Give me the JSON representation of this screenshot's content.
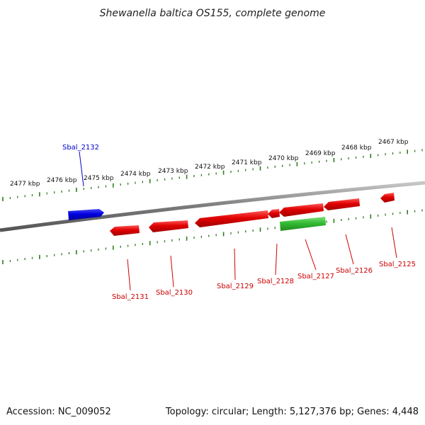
{
  "title": "Shewanella baltica OS155, complete genome",
  "footer": {
    "accession": "Accession: NC_009052",
    "stats": "Topology: circular; Length: 5,127,376 bp; Genes: 4,448"
  },
  "colors": {
    "backbone": "#8a8a8a",
    "ticks": "#2e7d1e",
    "reverse_gene": "#e00000",
    "forward_gene": "#0000dd",
    "highlight_gene": "#33bb33",
    "label_red": "#cc0000",
    "label_blue": "#0000cc"
  },
  "kbp_labels": [
    "2477 kbp",
    "2476 kbp",
    "2475 kbp",
    "2474 kbp",
    "2473 kbp",
    "2472 kbp",
    "2471 kbp",
    "2470 kbp",
    "2469 kbp",
    "2468 kbp",
    "2467 kbp"
  ],
  "genes": [
    {
      "name": "Sbal_2132",
      "strand": "forward",
      "color": "blue"
    },
    {
      "name": "Sbal_2131",
      "strand": "reverse",
      "color": "red"
    },
    {
      "name": "Sbal_2130",
      "strand": "reverse",
      "color": "red"
    },
    {
      "name": "Sbal_2129",
      "strand": "reverse",
      "color": "red"
    },
    {
      "name": "Sbal_2128",
      "strand": "reverse",
      "color": "red"
    },
    {
      "name": "Sbal_2127",
      "strand": "reverse",
      "color": "red"
    },
    {
      "name": "Sbal_2126",
      "strand": "reverse",
      "color": "red"
    },
    {
      "name": "Sbal_2125",
      "strand": "reverse",
      "color": "red"
    }
  ]
}
